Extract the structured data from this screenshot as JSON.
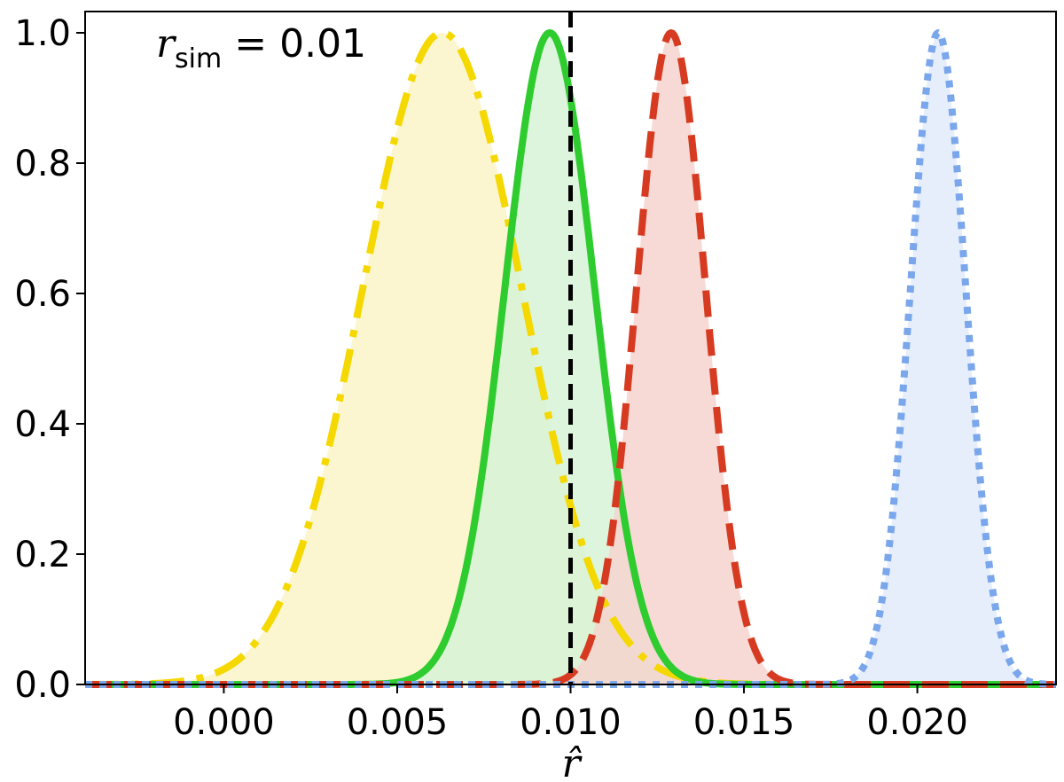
{
  "chart_data": {
    "type": "line",
    "title": "",
    "xlabel": "r̂",
    "ylabel": "",
    "xlim": [
      -0.004,
      0.024
    ],
    "ylim": [
      0.0,
      1.0
    ],
    "x_ticks": [
      0.0,
      0.005,
      0.01,
      0.015,
      0.02
    ],
    "x_tick_labels": [
      "0.000",
      "0.005",
      "0.010",
      "0.015",
      "0.020"
    ],
    "y_ticks": [
      0.0,
      0.2,
      0.4,
      0.6,
      0.8,
      1.0
    ],
    "y_tick_labels": [
      "0.0",
      "0.2",
      "0.4",
      "0.6",
      "0.8",
      "1.0"
    ],
    "grid": false,
    "annotation": {
      "base": "r",
      "subscript": "sim",
      "equals": " = 0.01"
    },
    "reference_line": {
      "x": 0.01,
      "style": "dashed",
      "color": "#000000"
    },
    "series": [
      {
        "peak": 0.0063,
        "sigma": 0.0023,
        "color": "#f5d800",
        "fill": "#fbf5c8",
        "dash": "38,14,8,14"
      },
      {
        "peak": 0.0094,
        "sigma": 0.0013,
        "color": "#2ecc2e",
        "fill": "#d6f3d6",
        "dash": ""
      },
      {
        "peak": 0.0129,
        "sigma": 0.001,
        "color": "#d63b22",
        "fill": "#f6d4cf",
        "dash": "30,14"
      },
      {
        "peak": 0.0206,
        "sigma": 0.0008,
        "color": "#7aa6ec",
        "fill": "#e2ebfb",
        "dash": "8,8"
      }
    ]
  }
}
